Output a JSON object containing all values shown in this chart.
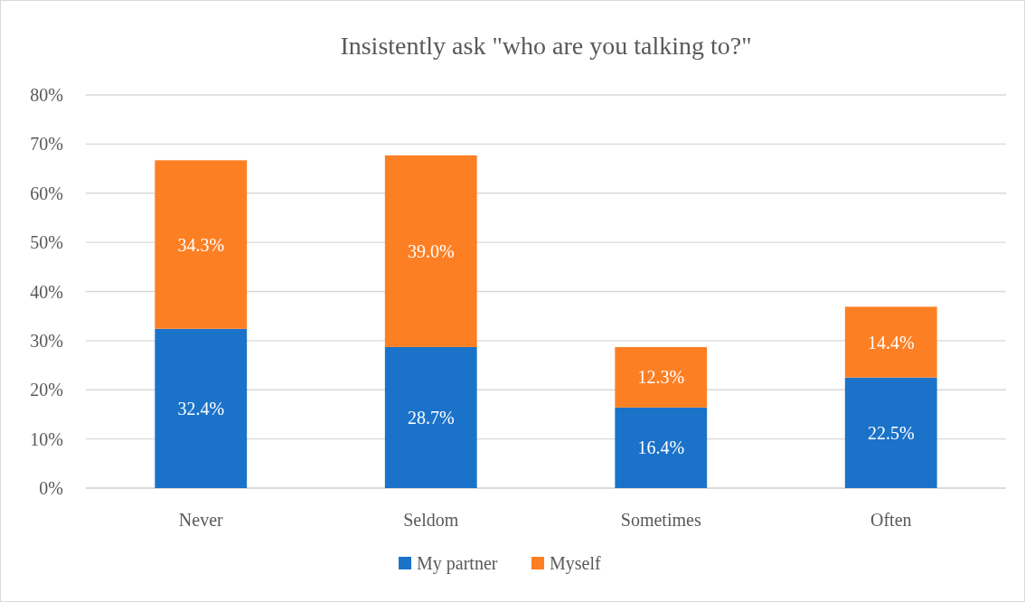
{
  "chart_data": {
    "type": "bar",
    "title": "Insistently ask \"who are you talking to?\"",
    "categories": [
      "Never",
      "Seldom",
      "Sometimes",
      "Often"
    ],
    "stacked": true,
    "series": [
      {
        "name": "My partner",
        "color": "#1b72c9",
        "values": [
          32.4,
          28.7,
          16.4,
          22.5
        ],
        "value_labels": [
          "32.4%",
          "28.7%",
          "16.4%",
          "22.5%"
        ]
      },
      {
        "name": "Myself",
        "color": "#fd7f24",
        "values": [
          34.3,
          39.0,
          12.3,
          14.4
        ],
        "value_labels": [
          "34.3%",
          "39.0%",
          "12.3%",
          "14.4%"
        ]
      }
    ],
    "ylim": [
      0,
      80
    ],
    "yticks": [
      {
        "value": 0,
        "label": "0%"
      },
      {
        "value": 10,
        "label": "10%"
      },
      {
        "value": 20,
        "label": "20%"
      },
      {
        "value": 30,
        "label": "30%"
      },
      {
        "value": 40,
        "label": "40%"
      },
      {
        "value": 50,
        "label": "50%"
      },
      {
        "value": 60,
        "label": "60%"
      },
      {
        "value": 70,
        "label": "70%"
      },
      {
        "value": 80,
        "label": "80%"
      }
    ],
    "grid": "y",
    "legend": "bottom"
  }
}
